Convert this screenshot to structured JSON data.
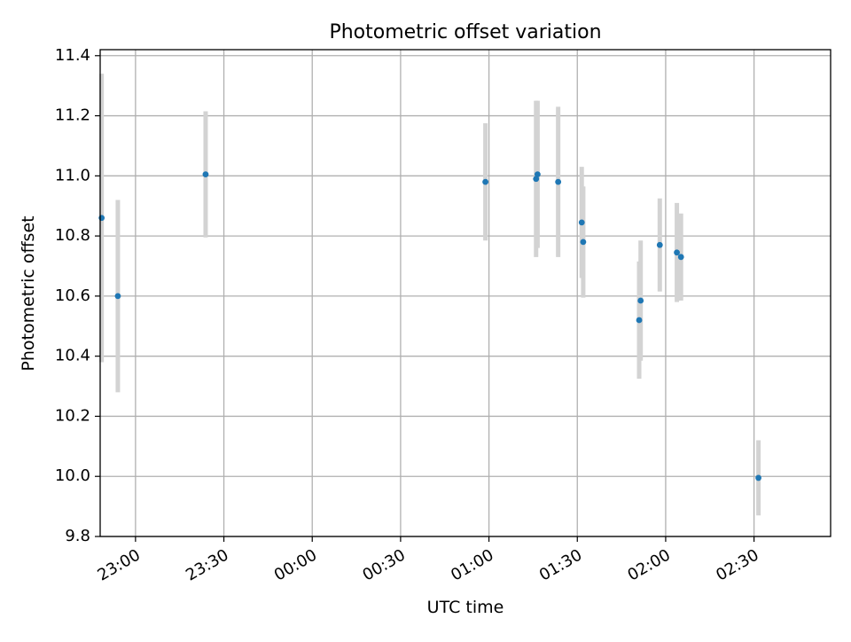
{
  "chart_data": {
    "type": "scatter",
    "title": "Photometric offset variation",
    "xlabel": "UTC time",
    "ylabel": "Photometric offset",
    "x_axis": {
      "kind": "time",
      "range": [
        "22:48",
        "02:56"
      ],
      "ticks": [
        "23:00",
        "23:30",
        "00:00",
        "00:30",
        "01:00",
        "01:30",
        "02:00",
        "02:30"
      ],
      "tick_rotation_deg": 30
    },
    "y_axis": {
      "range": [
        9.8,
        11.42
      ],
      "ticks": [
        "9.8",
        "10.0",
        "10.2",
        "10.4",
        "10.6",
        "10.8",
        "11.0",
        "11.2",
        "11.4"
      ]
    },
    "grid": true,
    "legend": "none",
    "colors": {
      "marker": "#1f77b4",
      "errorbar": "#d3d3d3",
      "grid": "#b0b0b0"
    },
    "series": [
      {
        "points": [
          {
            "t": "22:48.5",
            "y": 10.86,
            "err": 0.48
          },
          {
            "t": "22:54.0",
            "y": 10.6,
            "err": 0.32
          },
          {
            "t": "23:23.8",
            "y": 11.005,
            "err": 0.21
          },
          {
            "t": "00:58.8",
            "y": 10.98,
            "err": 0.195
          },
          {
            "t": "01:16.0",
            "y": 10.99,
            "err": 0.26
          },
          {
            "t": "01:16.5",
            "y": 11.005,
            "err": 0.245
          },
          {
            "t": "01:23.5",
            "y": 10.98,
            "err": 0.25
          },
          {
            "t": "01:31.5",
            "y": 10.845,
            "err": 0.185
          },
          {
            "t": "01:32.0",
            "y": 10.78,
            "err": 0.185
          },
          {
            "t": "01:51.0",
            "y": 10.52,
            "err": 0.195
          },
          {
            "t": "01:51.5",
            "y": 10.585,
            "err": 0.2
          },
          {
            "t": "01:58.0",
            "y": 10.77,
            "err": 0.155
          },
          {
            "t": "02:03.8",
            "y": 10.745,
            "err": 0.165
          },
          {
            "t": "02:05.2",
            "y": 10.73,
            "err": 0.145
          },
          {
            "t": "02:31.5",
            "y": 9.995,
            "err": 0.125
          }
        ]
      }
    ]
  }
}
